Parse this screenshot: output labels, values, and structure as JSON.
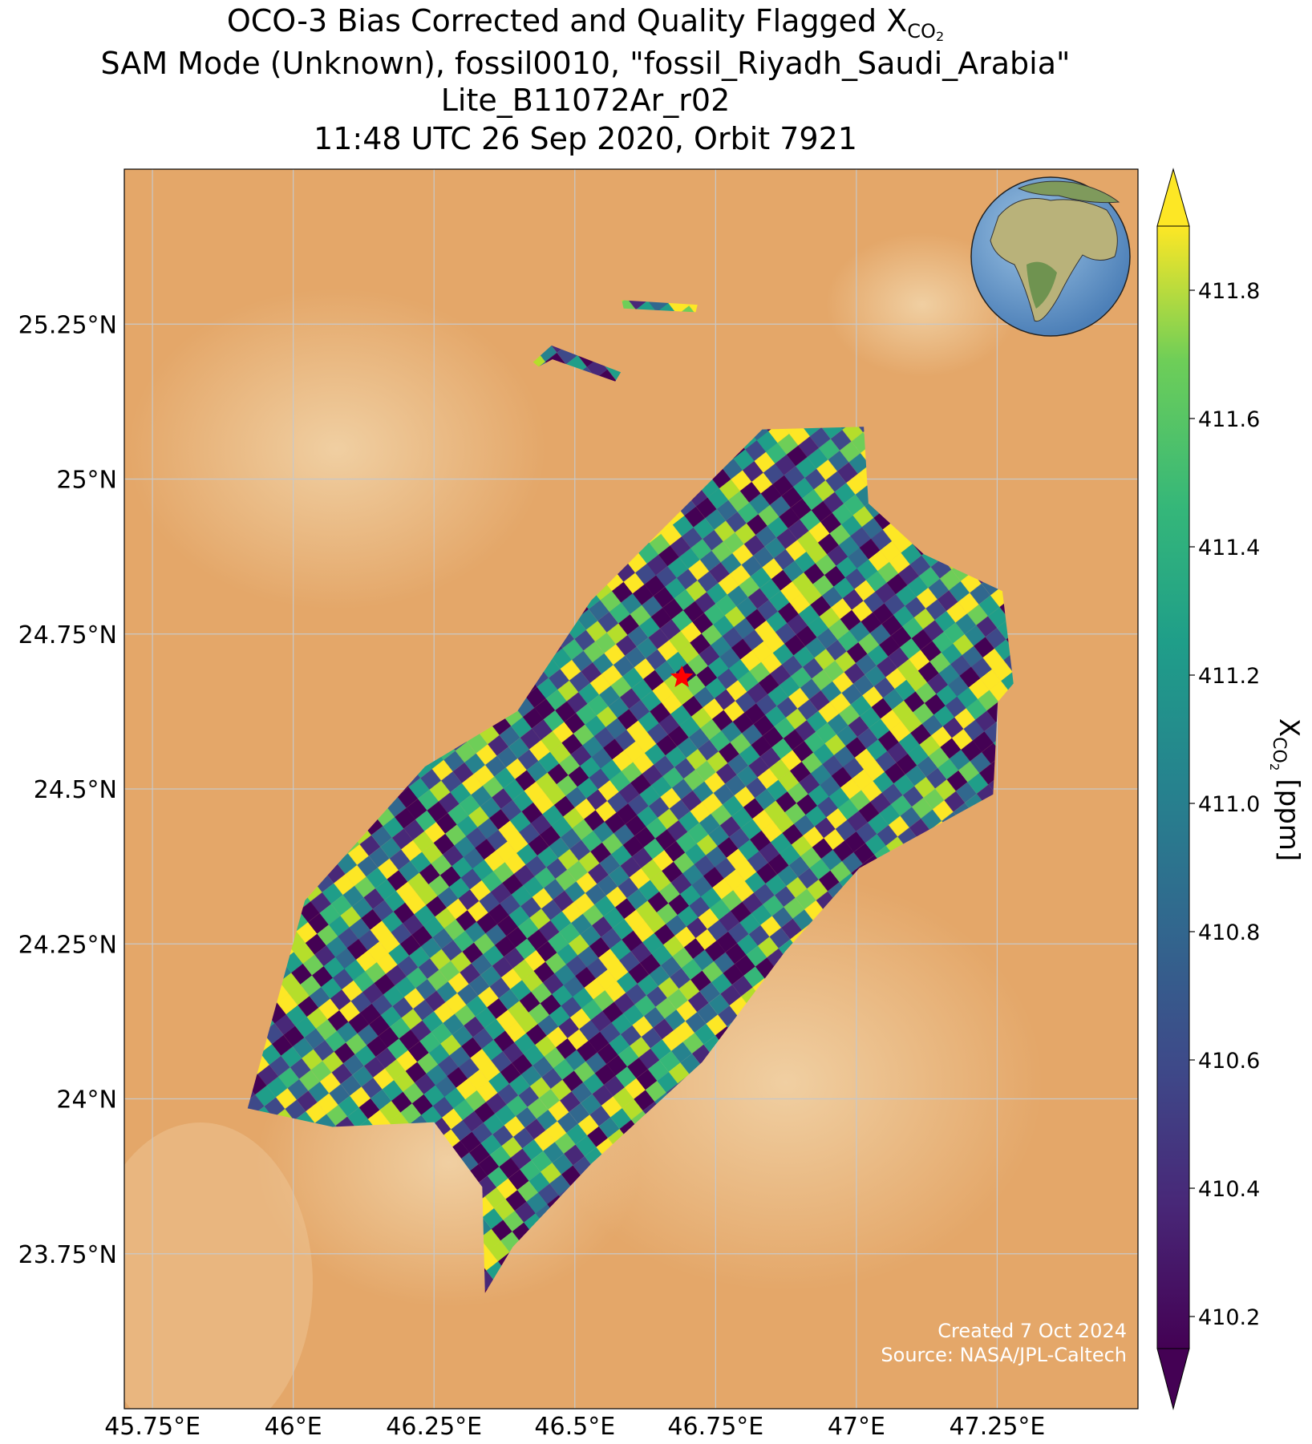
{
  "chart_data": {
    "type": "map",
    "title": [
      "OCO-3 Bias Corrected and Quality Flagged X",
      "SAM Mode (Unknown), fossil0010, \"fossil_Riyadh_Saudi_Arabia\"",
      "Lite_B11072Ar_r02",
      "11:48 UTC 26 Sep 2020, Orbit 7921"
    ],
    "title_subscript": "CO",
    "title_subscript_sub": "2",
    "xlim": [
      45.7,
      47.5
    ],
    "xticks": [
      {
        "value": 45.75,
        "label": "45.75°E"
      },
      {
        "value": 46,
        "label": "46°E"
      },
      {
        "value": 46.25,
        "label": "46.25°E"
      },
      {
        "value": 46.5,
        "label": "46.5°E"
      },
      {
        "value": 46.75,
        "label": "46.75°E"
      },
      {
        "value": 47,
        "label": "47°E"
      },
      {
        "value": 47.25,
        "label": "47.25°E"
      }
    ],
    "ylim": [
      23.5,
      25.5
    ],
    "yticks": [
      {
        "value": 23.75,
        "label": "23.75°N"
      },
      {
        "value": 24,
        "label": "24°N"
      },
      {
        "value": 24.25,
        "label": "24.25°N"
      },
      {
        "value": 24.5,
        "label": "24.5°N"
      },
      {
        "value": 24.75,
        "label": "24.75°N"
      },
      {
        "value": 25,
        "label": "25°N"
      },
      {
        "value": 25.25,
        "label": "25.25°N"
      }
    ],
    "grid": true,
    "colorbar": {
      "label": "X",
      "label_subscript": "CO",
      "label_subscript_sub": "2",
      "label_unit": "[ppm]",
      "lim": [
        410.15,
        411.9
      ],
      "ticks": [
        410.2,
        410.4,
        410.6,
        410.8,
        {
          "value": 411,
          "label": "411.0"
        },
        411.2,
        411.4,
        411.6,
        411.8
      ],
      "extend": "both"
    },
    "target": {
      "lon": 46.69,
      "lat": 24.68,
      "color": "red"
    },
    "annotations": [
      "Created 7 Oct 2024",
      "Source: NASA/JPL-Caltech"
    ]
  }
}
